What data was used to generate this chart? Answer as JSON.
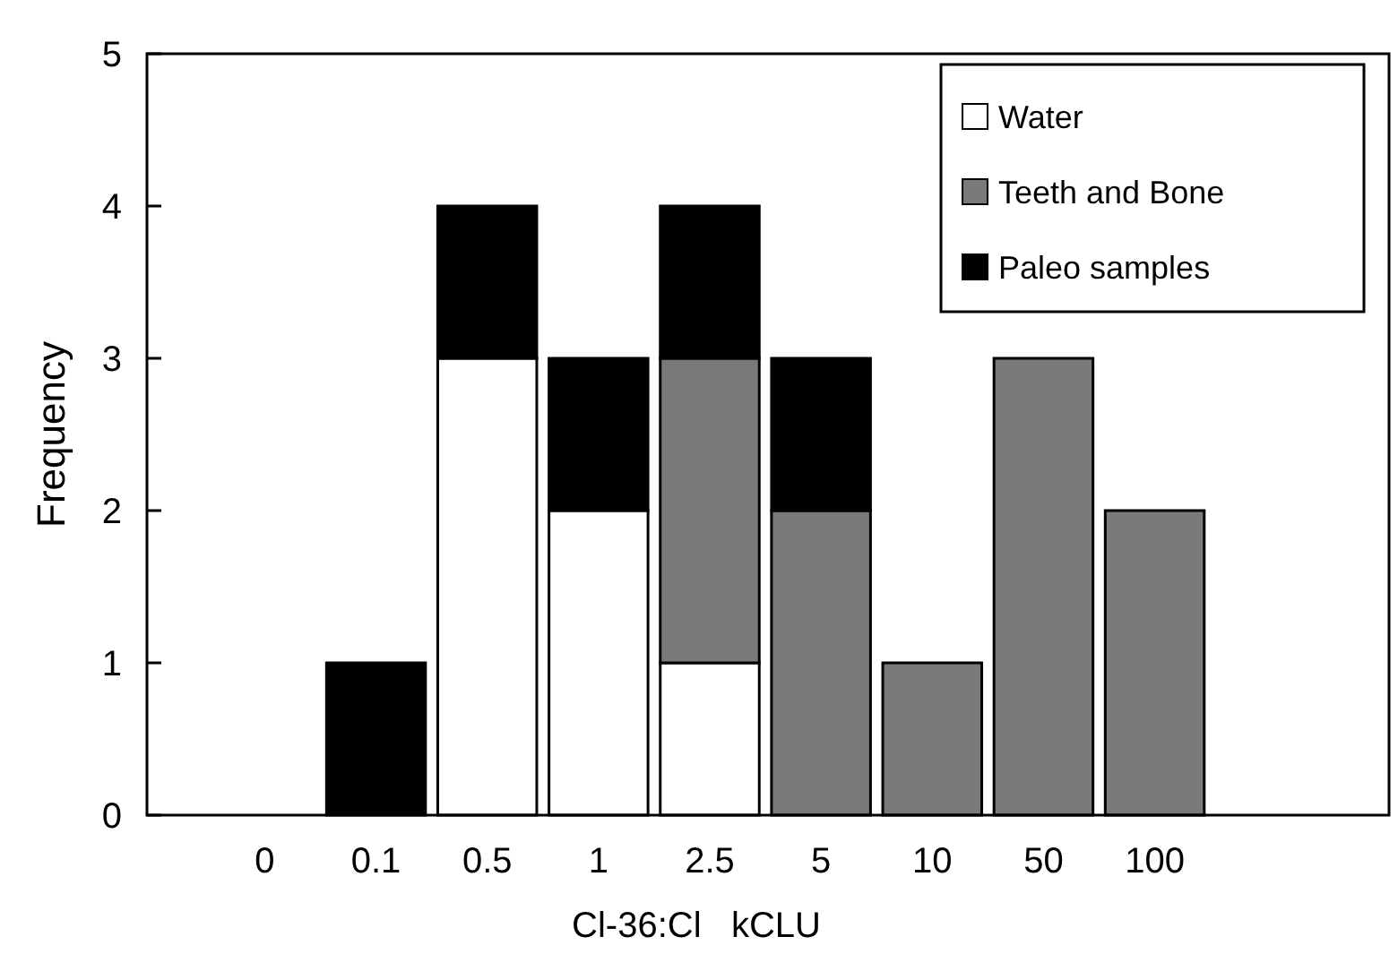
{
  "chart_data": {
    "type": "bar",
    "stacked": true,
    "xlabel": "Cl-36:Cl   kCLU",
    "ylabel": "Frequency",
    "categories": [
      "0",
      "0.1",
      "0.5",
      "1",
      "2.5",
      "5",
      "10",
      "50",
      "100"
    ],
    "series": [
      {
        "name": "Water",
        "color": "#ffffff",
        "values": [
          0,
          0,
          3,
          2,
          1,
          0,
          0,
          0,
          0
        ]
      },
      {
        "name": "Teeth and Bone",
        "color": "#7a7a7a",
        "values": [
          0,
          0,
          0,
          0,
          2,
          2,
          1,
          3,
          2
        ]
      },
      {
        "name": "Paleo samples",
        "color": "#000000",
        "values": [
          0,
          1,
          1,
          1,
          1,
          1,
          0,
          0,
          0
        ]
      }
    ],
    "ylim": [
      0,
      5
    ],
    "yticks": [
      0,
      1,
      2,
      3,
      4,
      5
    ],
    "legend": "top right",
    "grid": false
  }
}
